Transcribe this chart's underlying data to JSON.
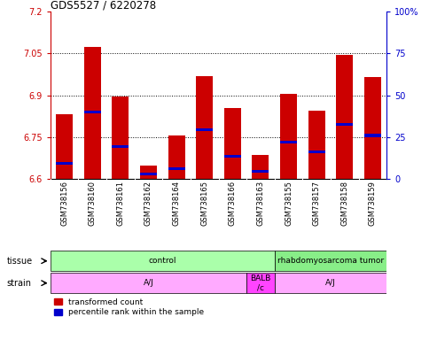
{
  "title": "GDS5527 / 6220278",
  "samples": [
    "GSM738156",
    "GSM738160",
    "GSM738161",
    "GSM738162",
    "GSM738164",
    "GSM738165",
    "GSM738166",
    "GSM738163",
    "GSM738155",
    "GSM738157",
    "GSM738158",
    "GSM738159"
  ],
  "red_values": [
    6.83,
    7.075,
    6.895,
    6.645,
    6.755,
    6.97,
    6.855,
    6.685,
    6.905,
    6.845,
    7.045,
    6.965
  ],
  "blue_values": [
    6.655,
    6.84,
    6.715,
    6.615,
    6.635,
    6.775,
    6.68,
    6.625,
    6.73,
    6.695,
    6.795,
    6.755
  ],
  "ymin": 6.6,
  "ymax": 7.2,
  "y_ticks_left": [
    6.6,
    6.75,
    6.9,
    7.05,
    7.2
  ],
  "y_ticks_right": [
    0,
    25,
    50,
    75,
    100
  ],
  "grid_lines": [
    6.75,
    6.9,
    7.05
  ],
  "bar_color": "#cc0000",
  "blue_color": "#0000cc",
  "bar_width": 0.6,
  "tissue_groups": [
    {
      "label": "control",
      "start": 0,
      "end": 8,
      "color": "#aaffaa"
    },
    {
      "label": "rhabdomyosarcoma tumor",
      "start": 8,
      "end": 12,
      "color": "#88ee88"
    }
  ],
  "strain_groups": [
    {
      "label": "A/J",
      "start": 0,
      "end": 7,
      "color": "#ffaaff"
    },
    {
      "label": "BALB\n/c",
      "start": 7,
      "end": 8,
      "color": "#ff44ff"
    },
    {
      "label": "A/J",
      "start": 8,
      "end": 12,
      "color": "#ffaaff"
    }
  ],
  "tissue_label": "tissue",
  "strain_label": "strain",
  "left_axis_color": "#cc0000",
  "right_axis_color": "#0000cc",
  "plot_bg_color": "#ffffff",
  "tick_area_color": "#cccccc",
  "label_area_color": "#ffffff"
}
